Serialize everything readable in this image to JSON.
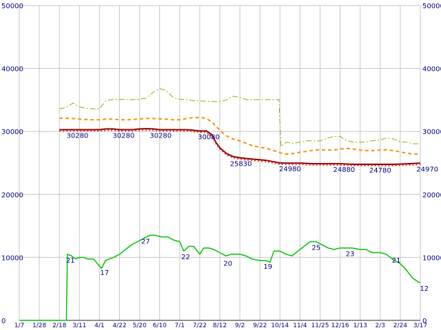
{
  "chart_data": {
    "type": "line",
    "title": "",
    "xlabel": "",
    "ylabel": "",
    "grid": true,
    "legend": "none",
    "ylim": [
      0,
      50000
    ],
    "y_ticks": [
      0,
      10000,
      20000,
      30000,
      40000,
      50000
    ],
    "y_tick_labels": [
      "0",
      "10000",
      "20000",
      "30000",
      "40000",
      "50000"
    ],
    "x_tick_labels": [
      "1/7",
      "1/28",
      "2/18",
      "3/11",
      "4/1",
      "4/22",
      "5/20",
      "6/10",
      "7/1",
      "7/22",
      "8/12",
      "9/2",
      "9/22",
      "10/14",
      "11/4",
      "11/25",
      "12/16",
      "1/13",
      "2/3",
      "2/24",
      "3/17"
    ],
    "colors": {
      "background": "#ffffff",
      "grid": "#c6c6c6",
      "axis": "#222222",
      "label": "#000080",
      "highest": "#a0a000",
      "average": "#ff8c00",
      "lowest": "#8b0000",
      "lowest_overlay": "#ff3030",
      "stores": "#00c000"
    },
    "series": [
      {
        "name": "highest-price",
        "color": "#a0a000",
        "style": "dashdot",
        "width": 1,
        "points": [
          [
            2,
            33600
          ],
          [
            2.33,
            33800
          ],
          [
            2.67,
            34500
          ],
          [
            3,
            33900
          ],
          [
            3.33,
            33700
          ],
          [
            3.67,
            33600
          ],
          [
            4,
            33600
          ],
          [
            4.33,
            34900
          ],
          [
            4.67,
            35100
          ],
          [
            5,
            35100
          ],
          [
            5.33,
            35050
          ],
          [
            5.67,
            35050
          ],
          [
            6,
            35100
          ],
          [
            6.33,
            35300
          ],
          [
            6.67,
            36200
          ],
          [
            7,
            36800
          ],
          [
            7.33,
            36500
          ],
          [
            7.67,
            35400
          ],
          [
            8,
            35100
          ],
          [
            8.33,
            35050
          ],
          [
            8.67,
            34900
          ],
          [
            9,
            34850
          ],
          [
            9.33,
            34800
          ],
          [
            9.67,
            34750
          ],
          [
            10,
            34750
          ],
          [
            10.33,
            35000
          ],
          [
            10.67,
            35600
          ],
          [
            11,
            35400
          ],
          [
            11.33,
            35050
          ],
          [
            11.67,
            35050
          ],
          [
            12,
            35050
          ],
          [
            12.33,
            35050
          ],
          [
            12.67,
            35050
          ],
          [
            12.95,
            35050
          ],
          [
            13.05,
            27600
          ],
          [
            13.33,
            28300
          ],
          [
            13.67,
            28100
          ],
          [
            14,
            28300
          ],
          [
            14.33,
            28500
          ],
          [
            14.67,
            28500
          ],
          [
            15,
            28500
          ],
          [
            15.33,
            28900
          ],
          [
            15.67,
            29200
          ],
          [
            16,
            29200
          ],
          [
            16.33,
            28500
          ],
          [
            16.67,
            28300
          ],
          [
            17,
            28300
          ],
          [
            17.33,
            28350
          ],
          [
            17.67,
            28550
          ],
          [
            18,
            28650
          ],
          [
            18.33,
            29000
          ],
          [
            18.67,
            28800
          ],
          [
            19,
            28350
          ],
          [
            19.33,
            28300
          ],
          [
            19.67,
            28050
          ],
          [
            20,
            28050
          ]
        ]
      },
      {
        "name": "average-price",
        "color": "#ff8c00",
        "style": "dashed",
        "width": 2,
        "points": [
          [
            2,
            32100
          ],
          [
            2.33,
            32100
          ],
          [
            2.67,
            32050
          ],
          [
            3,
            31950
          ],
          [
            3.33,
            31900
          ],
          [
            3.67,
            31850
          ],
          [
            4,
            31850
          ],
          [
            4.33,
            31950
          ],
          [
            4.67,
            31950
          ],
          [
            5,
            31850
          ],
          [
            5.33,
            31850
          ],
          [
            5.67,
            31900
          ],
          [
            6,
            32000
          ],
          [
            6.33,
            32050
          ],
          [
            6.67,
            32050
          ],
          [
            7,
            32000
          ],
          [
            7.33,
            31950
          ],
          [
            7.67,
            31850
          ],
          [
            8,
            31850
          ],
          [
            8.33,
            32050
          ],
          [
            8.67,
            32200
          ],
          [
            9,
            32200
          ],
          [
            9.33,
            32100
          ],
          [
            9.67,
            31300
          ],
          [
            10,
            30200
          ],
          [
            10.33,
            29300
          ],
          [
            10.67,
            28800
          ],
          [
            11,
            28500
          ],
          [
            11.33,
            28100
          ],
          [
            11.67,
            27700
          ],
          [
            12,
            27500
          ],
          [
            12.33,
            27300
          ],
          [
            12.67,
            27000
          ],
          [
            13,
            26600
          ],
          [
            13.33,
            26400
          ],
          [
            13.67,
            26500
          ],
          [
            14,
            26700
          ],
          [
            14.33,
            26850
          ],
          [
            14.67,
            27000
          ],
          [
            15,
            27100
          ],
          [
            15.33,
            27050
          ],
          [
            15.67,
            27050
          ],
          [
            16,
            27200
          ],
          [
            16.33,
            27300
          ],
          [
            16.67,
            27200
          ],
          [
            17,
            27050
          ],
          [
            17.33,
            26950
          ],
          [
            17.67,
            26950
          ],
          [
            18,
            27050
          ],
          [
            18.33,
            27100
          ],
          [
            18.67,
            26950
          ],
          [
            19,
            26750
          ],
          [
            19.33,
            26550
          ],
          [
            19.67,
            26400
          ],
          [
            20,
            26450
          ]
        ]
      },
      {
        "name": "lowest-price",
        "color": "#8b0000",
        "overlay_color": "#ff3030",
        "style": "solid-dotted",
        "width": 2,
        "points": [
          [
            2,
            30280
          ],
          [
            2.33,
            30280
          ],
          [
            2.67,
            30280
          ],
          [
            3,
            30280
          ],
          [
            3.33,
            30280
          ],
          [
            3.67,
            30280
          ],
          [
            4,
            30280
          ],
          [
            4.33,
            30400
          ],
          [
            4.67,
            30400
          ],
          [
            5,
            30280
          ],
          [
            5.33,
            30280
          ],
          [
            5.67,
            30280
          ],
          [
            6,
            30400
          ],
          [
            6.33,
            30450
          ],
          [
            6.67,
            30400
          ],
          [
            7,
            30280
          ],
          [
            7.33,
            30280
          ],
          [
            7.67,
            30280
          ],
          [
            8,
            30280
          ],
          [
            8.33,
            30280
          ],
          [
            8.67,
            30200
          ],
          [
            9,
            30080
          ],
          [
            9.33,
            30080
          ],
          [
            9.6,
            29500
          ],
          [
            9.8,
            28300
          ],
          [
            10,
            27400
          ],
          [
            10.33,
            26500
          ],
          [
            10.67,
            26000
          ],
          [
            11,
            25830
          ],
          [
            11.33,
            25700
          ],
          [
            11.67,
            25600
          ],
          [
            12,
            25500
          ],
          [
            12.33,
            25400
          ],
          [
            12.67,
            25200
          ],
          [
            13,
            25000
          ],
          [
            13.33,
            24980
          ],
          [
            13.67,
            24980
          ],
          [
            14,
            24980
          ],
          [
            14.33,
            24930
          ],
          [
            14.67,
            24880
          ],
          [
            15,
            24880
          ],
          [
            15.33,
            24880
          ],
          [
            15.67,
            24880
          ],
          [
            16,
            24880
          ],
          [
            16.33,
            24830
          ],
          [
            16.67,
            24780
          ],
          [
            17,
            24780
          ],
          [
            17.33,
            24780
          ],
          [
            17.67,
            24780
          ],
          [
            18,
            24780
          ],
          [
            18.33,
            24780
          ],
          [
            18.67,
            24780
          ],
          [
            19,
            24820
          ],
          [
            19.33,
            24870
          ],
          [
            19.67,
            24920
          ],
          [
            20,
            24970
          ]
        ]
      },
      {
        "name": "store-count",
        "color": "#00c000",
        "style": "solid",
        "width": 1.5,
        "value_scale": 500,
        "points": [
          [
            0,
            0
          ],
          [
            1,
            0
          ],
          [
            1.9,
            0
          ],
          [
            2.35,
            0
          ],
          [
            2.4,
            21
          ],
          [
            2.6,
            20.5
          ],
          [
            2.8,
            19.5
          ],
          [
            3,
            20
          ],
          [
            3.2,
            20
          ],
          [
            3.4,
            19.5
          ],
          [
            3.7,
            19.5
          ],
          [
            3.9,
            18
          ],
          [
            4.1,
            16.5
          ],
          [
            4.3,
            19
          ],
          [
            4.5,
            19.5
          ],
          [
            4.7,
            20
          ],
          [
            5,
            21
          ],
          [
            5.3,
            22.5
          ],
          [
            5.6,
            24
          ],
          [
            5.9,
            25
          ],
          [
            6.2,
            26
          ],
          [
            6.5,
            27
          ],
          [
            6.8,
            27
          ],
          [
            7.1,
            26.5
          ],
          [
            7.4,
            26.5
          ],
          [
            7.7,
            25.5
          ],
          [
            8,
            25
          ],
          [
            8.2,
            22
          ],
          [
            8.45,
            23.5
          ],
          [
            8.7,
            23.5
          ],
          [
            9,
            21
          ],
          [
            9.2,
            23
          ],
          [
            9.45,
            23
          ],
          [
            9.7,
            22.5
          ],
          [
            10,
            21.5
          ],
          [
            10.3,
            20.5
          ],
          [
            10.6,
            21
          ],
          [
            11,
            21
          ],
          [
            11.3,
            20.5
          ],
          [
            11.6,
            19.5
          ],
          [
            12,
            19
          ],
          [
            12.3,
            19
          ],
          [
            12.5,
            18.5
          ],
          [
            12.7,
            22
          ],
          [
            13,
            22
          ],
          [
            13.3,
            21
          ],
          [
            13.6,
            20.5
          ],
          [
            13.9,
            22
          ],
          [
            14.2,
            23.5
          ],
          [
            14.5,
            25
          ],
          [
            14.8,
            25
          ],
          [
            15.1,
            24
          ],
          [
            15.4,
            23
          ],
          [
            15.7,
            22.5
          ],
          [
            16,
            23
          ],
          [
            16.3,
            23
          ],
          [
            16.6,
            23
          ],
          [
            17,
            22.5
          ],
          [
            17.3,
            22.5
          ],
          [
            17.6,
            21.5
          ],
          [
            18,
            21.5
          ],
          [
            18.3,
            21
          ],
          [
            18.6,
            19.5
          ],
          [
            19,
            18
          ],
          [
            19.3,
            16
          ],
          [
            19.6,
            13.5
          ],
          [
            19.9,
            12.2
          ],
          [
            20,
            12
          ]
        ]
      }
    ],
    "price_labels": [
      {
        "t": 2.9,
        "value": 30280,
        "text": "30280"
      },
      {
        "t": 5.2,
        "value": 30280,
        "text": "30280"
      },
      {
        "t": 7.05,
        "value": 30280,
        "text": "30280"
      },
      {
        "t": 9.45,
        "value": 30080,
        "text": "30080"
      },
      {
        "t": 11.05,
        "value": 25830,
        "text": "25830"
      },
      {
        "t": 13.5,
        "value": 24980,
        "text": "24980"
      },
      {
        "t": 16.2,
        "value": 24880,
        "text": "24880"
      },
      {
        "t": 18.0,
        "value": 24780,
        "text": "24780"
      },
      {
        "t": 20.35,
        "value": 24970,
        "text": "24970"
      }
    ],
    "count_labels": [
      {
        "t": 2.55,
        "count": 21,
        "text": "21"
      },
      {
        "t": 4.25,
        "count": 17,
        "text": "17"
      },
      {
        "t": 6.3,
        "count": 27,
        "text": "27"
      },
      {
        "t": 8.3,
        "count": 22,
        "text": "22"
      },
      {
        "t": 10.4,
        "count": 20,
        "text": "20"
      },
      {
        "t": 12.4,
        "count": 19,
        "text": "19"
      },
      {
        "t": 14.8,
        "count": 25,
        "text": "25"
      },
      {
        "t": 16.5,
        "count": 23,
        "text": "23"
      },
      {
        "t": 18.8,
        "count": 21,
        "text": "21"
      },
      {
        "t": 20.2,
        "count": 12,
        "text": "12"
      }
    ]
  }
}
